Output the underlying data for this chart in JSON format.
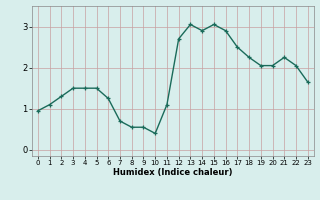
{
  "x": [
    0,
    1,
    2,
    3,
    4,
    5,
    6,
    7,
    8,
    9,
    10,
    11,
    12,
    13,
    14,
    15,
    16,
    17,
    18,
    19,
    20,
    21,
    22,
    23
  ],
  "y": [
    0.95,
    1.1,
    1.3,
    1.5,
    1.5,
    1.5,
    1.25,
    0.7,
    0.55,
    0.55,
    0.4,
    1.1,
    2.7,
    3.05,
    2.9,
    3.05,
    2.9,
    2.5,
    2.25,
    2.05,
    2.05,
    2.25,
    2.05,
    1.65
  ],
  "xlabel": "Humidex (Indice chaleur)",
  "xlim": [
    -0.5,
    23.5
  ],
  "ylim": [
    -0.15,
    3.5
  ],
  "yticks": [
    0,
    1,
    2,
    3
  ],
  "xticks": [
    0,
    1,
    2,
    3,
    4,
    5,
    6,
    7,
    8,
    9,
    10,
    11,
    12,
    13,
    14,
    15,
    16,
    17,
    18,
    19,
    20,
    21,
    22,
    23
  ],
  "line_color": "#1a6b5a",
  "marker": "+",
  "bg_color": "#d8eeec",
  "grid_color": "#c8dedd",
  "fig_bg": "#d8eeec",
  "tick_color": "#555555"
}
